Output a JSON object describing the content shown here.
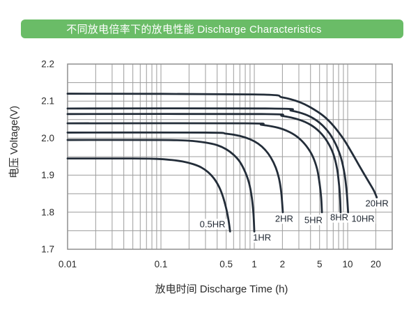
{
  "banner": {
    "title": "不同放电倍率下的放电性能 Discharge Characteristics",
    "bg_color": "#6abc67",
    "text_color": "#ffffff"
  },
  "chart_data": {
    "type": "line",
    "title": "不同放电倍率下的放电性能 Discharge Characteristics",
    "xlabel": "放电时间  Discharge Time (h)",
    "ylabel": "电压 Voltage(V)",
    "x_scale": "log",
    "xlim": [
      0.01,
      30
    ],
    "ylim": [
      1.7,
      2.2
    ],
    "y_grid_step": 0.05,
    "grid": true,
    "legend_position": "inline-labels",
    "x_ticks": [
      {
        "v": 0.01,
        "label": "0.01"
      },
      {
        "v": 0.1,
        "label": "0.1"
      },
      {
        "v": 0.5,
        "label": "0.5"
      },
      {
        "v": 1,
        "label": "1"
      },
      {
        "v": 2,
        "label": "2"
      },
      {
        "v": 5,
        "label": "5"
      },
      {
        "v": 10,
        "label": "10"
      },
      {
        "v": 20,
        "label": "20"
      }
    ],
    "y_ticks": [
      {
        "v": 2.2,
        "label": "2.2"
      },
      {
        "v": 2.1,
        "label": "2.1"
      },
      {
        "v": 2.0,
        "label": "2.0"
      },
      {
        "v": 1.9,
        "label": "1.9"
      },
      {
        "v": 1.8,
        "label": "1.8"
      },
      {
        "v": 1.7,
        "label": "1.7"
      }
    ],
    "colors": {
      "curve": "#232d39",
      "grid": "#9c9c9c",
      "border": "#8f8f8f",
      "tick_text": "#2a2a2a",
      "label_text": "#1f2732",
      "banner_green": "#6abc67"
    },
    "series": [
      {
        "name": "0.5HR",
        "label": "0.5HR",
        "plateau_v": 1.945,
        "end_time_h": 0.55,
        "end_v": 1.75,
        "label_pos": [
          0.357,
          1.768
        ],
        "points": [
          [
            0.01,
            1.945
          ],
          [
            0.05,
            1.945
          ],
          [
            0.09,
            1.944
          ],
          [
            0.13,
            1.941
          ],
          [
            0.17,
            1.937
          ],
          [
            0.22,
            1.93
          ],
          [
            0.27,
            1.921
          ],
          [
            0.32,
            1.908
          ],
          [
            0.37,
            1.891
          ],
          [
            0.42,
            1.868
          ],
          [
            0.46,
            1.843
          ],
          [
            0.5,
            1.81
          ],
          [
            0.53,
            1.778
          ],
          [
            0.55,
            1.748
          ]
        ]
      },
      {
        "name": "1HR",
        "label": "1HR",
        "plateau_v": 1.995,
        "end_time_h": 1.0,
        "end_v": 1.75,
        "label_pos": [
          1.21,
          1.732
        ],
        "points": [
          [
            0.01,
            1.995
          ],
          [
            0.1,
            1.995
          ],
          [
            0.2,
            1.993
          ],
          [
            0.3,
            1.988
          ],
          [
            0.4,
            1.981
          ],
          [
            0.5,
            1.97
          ],
          [
            0.6,
            1.955
          ],
          [
            0.7,
            1.936
          ],
          [
            0.8,
            1.908
          ],
          [
            0.88,
            1.878
          ],
          [
            0.94,
            1.84
          ],
          [
            0.98,
            1.795
          ],
          [
            1.0,
            1.748
          ]
        ]
      },
      {
        "name": "2HR",
        "label": "2HR",
        "plateau_v": 2.015,
        "end_time_h": 2.0,
        "end_v": 1.8,
        "label_pos": [
          2.09,
          1.783
        ],
        "points": [
          [
            0.01,
            2.015
          ],
          [
            0.3,
            2.015
          ],
          [
            0.5,
            2.012
          ],
          [
            0.7,
            2.006
          ],
          [
            0.9,
            1.997
          ],
          [
            1.1,
            1.985
          ],
          [
            1.3,
            1.969
          ],
          [
            1.5,
            1.948
          ],
          [
            1.7,
            1.92
          ],
          [
            1.85,
            1.888
          ],
          [
            1.95,
            1.85
          ],
          [
            2.02,
            1.8
          ]
        ]
      },
      {
        "name": "5HR",
        "label": "5HR",
        "plateau_v": 2.04,
        "end_time_h": 5.3,
        "end_v": 1.8,
        "label_pos": [
          4.3,
          1.779
        ],
        "points": [
          [
            0.01,
            2.04
          ],
          [
            0.8,
            2.04
          ],
          [
            1.2,
            2.036
          ],
          [
            1.8,
            2.028
          ],
          [
            2.4,
            2.016
          ],
          [
            3.0,
            2.0
          ],
          [
            3.6,
            1.979
          ],
          [
            4.2,
            1.952
          ],
          [
            4.7,
            1.917
          ],
          [
            5.0,
            1.878
          ],
          [
            5.2,
            1.84
          ],
          [
            5.3,
            1.8
          ]
        ]
      },
      {
        "name": "8HR",
        "label": "8HR",
        "plateau_v": 2.065,
        "end_time_h": 8.4,
        "end_v": 1.8,
        "label_pos": [
          8.13,
          1.786
        ],
        "points": [
          [
            0.01,
            2.065
          ],
          [
            1.2,
            2.065
          ],
          [
            2.0,
            2.06
          ],
          [
            3.0,
            2.05
          ],
          [
            4.0,
            2.036
          ],
          [
            5.0,
            2.017
          ],
          [
            6.0,
            1.992
          ],
          [
            7.0,
            1.958
          ],
          [
            7.7,
            1.917
          ],
          [
            8.1,
            1.872
          ],
          [
            8.3,
            1.836
          ],
          [
            8.4,
            1.8
          ]
        ]
      },
      {
        "name": "10HR",
        "label": "10HR",
        "plateau_v": 2.08,
        "end_time_h": 10.1,
        "end_v": 1.8,
        "label_pos": [
          14.6,
          1.783
        ],
        "points": [
          [
            0.01,
            2.08
          ],
          [
            1.5,
            2.08
          ],
          [
            2.5,
            2.074
          ],
          [
            3.5,
            2.064
          ],
          [
            4.5,
            2.05
          ],
          [
            5.5,
            2.032
          ],
          [
            6.5,
            2.01
          ],
          [
            7.5,
            1.982
          ],
          [
            8.5,
            1.946
          ],
          [
            9.3,
            1.9
          ],
          [
            9.8,
            1.85
          ],
          [
            10.1,
            1.8
          ]
        ]
      },
      {
        "name": "20HR",
        "label": "20HR",
        "plateau_v": 2.12,
        "end_time_h": 20.5,
        "end_v": 1.84,
        "label_pos": [
          20.6,
          1.824
        ],
        "points": [
          [
            0.01,
            2.12
          ],
          [
            1.0,
            2.118
          ],
          [
            2.0,
            2.11
          ],
          [
            3.0,
            2.098
          ],
          [
            4.0,
            2.083
          ],
          [
            5.5,
            2.06
          ],
          [
            7.0,
            2.034
          ],
          [
            9.0,
            1.998
          ],
          [
            11.0,
            1.962
          ],
          [
            13.0,
            1.93
          ],
          [
            15.0,
            1.903
          ],
          [
            17.0,
            1.88
          ],
          [
            19.0,
            1.859
          ],
          [
            20.5,
            1.84
          ]
        ]
      }
    ]
  }
}
